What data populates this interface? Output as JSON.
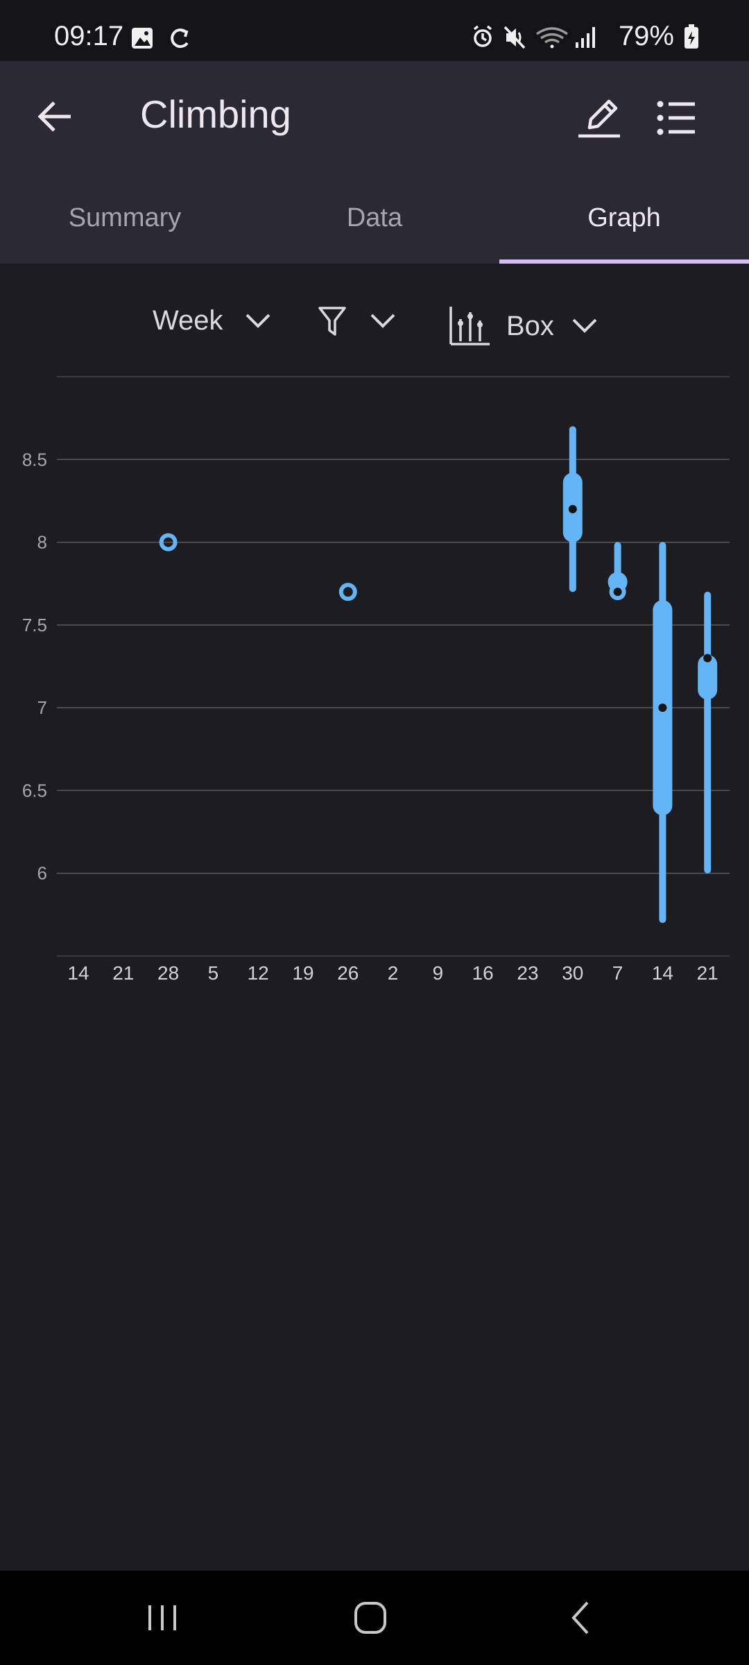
{
  "status_bar": {
    "time": "09:17",
    "battery": "79%"
  },
  "app_bar": {
    "title": "Climbing"
  },
  "tabs": [
    {
      "label": "Summary"
    },
    {
      "label": "Data"
    },
    {
      "label": "Graph"
    }
  ],
  "controls": {
    "period": "Week",
    "chart_type": "Box"
  },
  "chart_data": {
    "type": "box",
    "y_ticks": [
      "8.5",
      "8",
      "7.5",
      "7",
      "6.5",
      "6"
    ],
    "ylim": [
      5.5,
      9.0
    ],
    "x_ticks": [
      "14",
      "21",
      "28",
      "5",
      "12",
      "19",
      "26",
      "2",
      "9",
      "16",
      "23",
      "30",
      "7",
      "14",
      "21"
    ],
    "grid": true,
    "color": "#64b5f6",
    "boxes": [
      {
        "index": 2,
        "single": 8.0
      },
      {
        "index": 6,
        "single": 7.7
      },
      {
        "index": 11,
        "min": 7.72,
        "q1": 8.0,
        "median": 8.2,
        "q3": 8.42,
        "max": 8.68
      },
      {
        "index": 12,
        "min": 7.7,
        "q1": 7.7,
        "median": 7.7,
        "q3": 7.82,
        "max": 7.98
      },
      {
        "index": 13,
        "min": 5.72,
        "q1": 6.35,
        "median": 7.0,
        "q3": 7.65,
        "max": 7.98
      },
      {
        "index": 14,
        "min": 6.02,
        "q1": 7.05,
        "median": 7.3,
        "q3": 7.32,
        "max": 7.68
      }
    ]
  }
}
